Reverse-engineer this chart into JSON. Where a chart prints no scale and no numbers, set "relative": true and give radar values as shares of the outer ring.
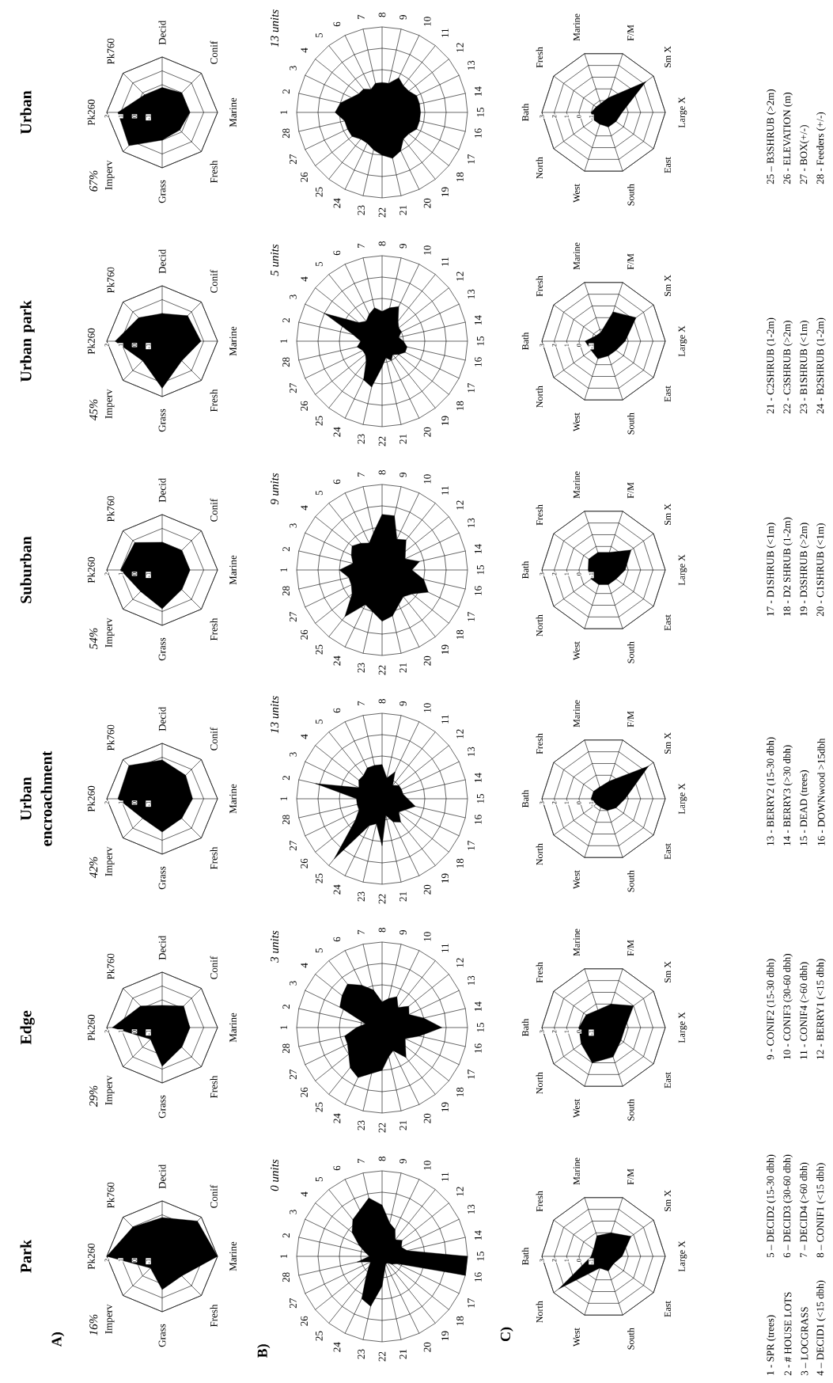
{
  "chart_data": [
    {
      "type": "radar",
      "title": "Park",
      "categories": [
        "Pk260",
        "Pk760",
        "Decid",
        "Conif",
        "Marine",
        "Fresh",
        "Grass",
        "Imperv"
      ],
      "values": [
        2.0,
        1.0,
        0.8,
        1.6,
        2.0,
        0.0,
        0.4,
        -0.8
      ],
      "color": "#000000",
      "ylim": [
        -2,
        2
      ],
      "yticks": [
        -1,
        0,
        1,
        2
      ],
      "grid": true,
      "annotations": [
        "A)",
        "16%"
      ]
    },
    {
      "type": "radar",
      "title": "Edge",
      "categories": [
        "Pk260",
        "Pk760",
        "Decid",
        "Conif",
        "Marine",
        "Fresh",
        "Grass",
        "Imperv"
      ],
      "values": [
        1.6,
        0.2,
        -0.4,
        0.2,
        0.0,
        0.0,
        0.8,
        -0.8
      ],
      "color": "#000000",
      "ylim": [
        -2,
        2
      ],
      "yticks": [
        -1,
        0,
        1,
        2
      ],
      "grid": true,
      "annotations": [
        "29%"
      ]
    },
    {
      "type": "radar",
      "title": "Urban encroachment",
      "categories": [
        "Pk260",
        "Pk760",
        "Decid",
        "Conif",
        "Marine",
        "Fresh",
        "Grass",
        "Imperv"
      ],
      "values": [
        1.2,
        1.4,
        0.8,
        0.4,
        0.2,
        0.0,
        0.4,
        0.0
      ],
      "color": "#000000",
      "ylim": [
        -2,
        2
      ],
      "yticks": [
        -1,
        0,
        1,
        2
      ],
      "grid": true,
      "annotations": [
        "42%"
      ]
    },
    {
      "type": "radar",
      "title": "Suburban",
      "categories": [
        "Pk260",
        "Pk760",
        "Decid",
        "Conif",
        "Marine",
        "Fresh",
        "Grass",
        "Imperv"
      ],
      "values": [
        1.0,
        0.8,
        0.0,
        0.0,
        0.0,
        0.0,
        0.8,
        0.2
      ],
      "color": "#000000",
      "ylim": [
        -2,
        2
      ],
      "yticks": [
        -1,
        0,
        1,
        2
      ],
      "grid": true,
      "annotations": [
        "54%"
      ]
    },
    {
      "type": "radar",
      "title": "Urban park",
      "categories": [
        "Pk260",
        "Pk760",
        "Decid",
        "Conif",
        "Marine",
        "Fresh",
        "Grass",
        "Imperv"
      ],
      "values": [
        1.4,
        0.4,
        0.0,
        0.6,
        0.8,
        0.0,
        1.4,
        0.0
      ],
      "color": "#000000",
      "ylim": [
        -2,
        2
      ],
      "yticks": [
        -1,
        0,
        1,
        2
      ],
      "grid": true,
      "annotations": [
        "45%"
      ]
    },
    {
      "type": "radar",
      "title": "Urban",
      "categories": [
        "Pk260",
        "Pk760",
        "Decid",
        "Conif",
        "Marine",
        "Fresh",
        "Grass",
        "Imperv"
      ],
      "values": [
        1.2,
        -0.2,
        -0.2,
        0.0,
        0.0,
        -0.2,
        0.0,
        1.4
      ],
      "color": "#000000",
      "ylim": [
        -2,
        2
      ],
      "yticks": [
        -1,
        0,
        1,
        2
      ],
      "grid": true,
      "annotations": [
        "67%"
      ]
    },
    {
      "type": "radar",
      "relative": true,
      "categories": [
        "1",
        "2",
        "3",
        "4",
        "5",
        "6",
        "7",
        "8",
        "9",
        "10",
        "11",
        "12",
        "13",
        "14",
        "15",
        "16",
        "17",
        "18",
        "19",
        "20",
        "21",
        "22",
        "23",
        "24",
        "25",
        "26",
        "27",
        "28"
      ],
      "values": [
        0.15,
        0.2,
        0.3,
        0.45,
        0.55,
        0.6,
        0.7,
        0.6,
        0.4,
        0.35,
        0.25,
        0.3,
        0.25,
        0.3,
        1.0,
        1.0,
        0.2,
        0.15,
        0.1,
        0.1,
        0.15,
        0.35,
        0.6,
        0.55,
        0.3,
        0.2,
        0.15,
        0.3
      ],
      "color": "#000000",
      "grid": true,
      "annotations": [
        "B)",
        "0 units"
      ]
    },
    {
      "type": "radar",
      "relative": true,
      "categories": [
        "1",
        "2",
        "3",
        "4",
        "5",
        "6",
        "7",
        "8",
        "9",
        "10",
        "11",
        "12",
        "13",
        "14",
        "15",
        "16",
        "17",
        "18",
        "19",
        "20",
        "21",
        "22",
        "23",
        "24",
        "25",
        "26",
        "27",
        "28"
      ],
      "values": [
        0.3,
        0.2,
        0.55,
        0.6,
        0.65,
        0.55,
        0.45,
        0.3,
        0.35,
        0.4,
        0.3,
        0.4,
        0.35,
        0.5,
        0.7,
        0.45,
        0.3,
        0.35,
        0.45,
        0.3,
        0.35,
        0.5,
        0.55,
        0.65,
        0.6,
        0.5,
        0.45,
        0.45
      ],
      "color": "#000000",
      "grid": true,
      "annotations": [
        "3 units"
      ]
    },
    {
      "type": "radar",
      "relative": true,
      "categories": [
        "1",
        "2",
        "3",
        "4",
        "5",
        "6",
        "7",
        "8",
        "9",
        "10",
        "11",
        "12",
        "13",
        "14",
        "15",
        "16",
        "17",
        "18",
        "19",
        "20",
        "21",
        "22",
        "23",
        "24",
        "25",
        "26",
        "27",
        "28"
      ],
      "values": [
        0.3,
        0.8,
        0.3,
        0.35,
        0.35,
        0.4,
        0.4,
        0.4,
        0.25,
        0.35,
        0.2,
        0.25,
        0.25,
        0.25,
        0.3,
        0.4,
        0.3,
        0.25,
        0.35,
        0.3,
        0.2,
        0.55,
        0.3,
        0.35,
        0.9,
        0.4,
        0.3,
        0.3
      ],
      "color": "#000000",
      "grid": true,
      "annotations": [
        "13 units"
      ]
    },
    {
      "type": "radar",
      "relative": true,
      "categories": [
        "1",
        "2",
        "3",
        "4",
        "5",
        "6",
        "7",
        "8",
        "9",
        "10",
        "11",
        "12",
        "13",
        "14",
        "15",
        "16",
        "17",
        "18",
        "19",
        "20",
        "21",
        "22",
        "23",
        "24",
        "25",
        "26",
        "27",
        "28"
      ],
      "values": [
        0.5,
        0.35,
        0.4,
        0.45,
        0.4,
        0.35,
        0.45,
        0.65,
        0.65,
        0.4,
        0.45,
        0.35,
        0.3,
        0.45,
        0.35,
        0.5,
        0.6,
        0.45,
        0.4,
        0.45,
        0.55,
        0.6,
        0.5,
        0.45,
        0.7,
        0.45,
        0.4,
        0.4
      ],
      "color": "#000000",
      "grid": true,
      "annotations": [
        "9 units"
      ]
    },
    {
      "type": "radar",
      "relative": true,
      "categories": [
        "1",
        "2",
        "3",
        "4",
        "5",
        "6",
        "7",
        "8",
        "9",
        "10",
        "11",
        "12",
        "13",
        "14",
        "15",
        "16",
        "17",
        "18",
        "19",
        "20",
        "21",
        "22",
        "23",
        "24",
        "25",
        "26",
        "27",
        "28"
      ],
      "values": [
        0.25,
        0.35,
        0.75,
        0.35,
        0.3,
        0.35,
        0.4,
        0.35,
        0.4,
        0.45,
        0.3,
        0.25,
        0.25,
        0.2,
        0.25,
        0.3,
        0.3,
        0.25,
        0.2,
        0.25,
        0.2,
        0.3,
        0.55,
        0.5,
        0.3,
        0.25,
        0.25,
        0.3
      ],
      "color": "#000000",
      "grid": true,
      "annotations": [
        "5 units"
      ]
    },
    {
      "type": "radar",
      "relative": true,
      "categories": [
        "1",
        "2",
        "3",
        "4",
        "5",
        "6",
        "7",
        "8",
        "9",
        "10",
        "11",
        "12",
        "13",
        "14",
        "15",
        "16",
        "17",
        "18",
        "19",
        "20",
        "21",
        "22",
        "23",
        "24",
        "25",
        "26",
        "27",
        "28"
      ],
      "values": [
        0.55,
        0.5,
        0.4,
        0.35,
        0.35,
        0.3,
        0.35,
        0.35,
        0.35,
        0.45,
        0.4,
        0.4,
        0.45,
        0.45,
        0.45,
        0.45,
        0.45,
        0.4,
        0.4,
        0.5,
        0.55,
        0.5,
        0.45,
        0.4,
        0.4,
        0.45,
        0.45,
        0.45
      ],
      "color": "#000000",
      "grid": true,
      "annotations": [
        "13 units"
      ]
    },
    {
      "type": "radar",
      "categories": [
        "Bath",
        "Fresh",
        "Marine",
        "F/M",
        "Sm X",
        "Large X",
        "East",
        "South",
        "West",
        "North"
      ],
      "values": [
        -1,
        -1,
        -0.25,
        0,
        0.75,
        -0.5,
        -1,
        -0.75,
        -1,
        2.5
      ],
      "color": "#000000",
      "ylim": [
        -2,
        3
      ],
      "yticks": [
        -1,
        0,
        1,
        2,
        3
      ],
      "grid": true,
      "annotations": [
        "C)"
      ]
    },
    {
      "type": "radar",
      "categories": [
        "Bath",
        "Fresh",
        "Marine",
        "F/M",
        "Sm X",
        "Large X",
        "East",
        "South",
        "West",
        "North"
      ],
      "values": [
        0,
        -0.25,
        -0.5,
        0,
        1,
        -0.25,
        -0.25,
        0.5,
        1,
        0.25
      ],
      "color": "#000000",
      "ylim": [
        -2,
        3
      ],
      "yticks": [
        -1,
        0,
        1,
        2,
        3
      ],
      "grid": true
    },
    {
      "type": "radar",
      "categories": [
        "Bath",
        "Fresh",
        "Marine",
        "F/M",
        "Sm X",
        "Large X",
        "East",
        "South",
        "West",
        "North"
      ],
      "values": [
        -1,
        -1,
        -1,
        -0.5,
        2.5,
        -0.25,
        -0.75,
        -1,
        -1.25,
        -1.25
      ],
      "color": "#000000",
      "ylim": [
        -2,
        3
      ],
      "yticks": [
        -1,
        0,
        1,
        2,
        3
      ],
      "grid": true
    },
    {
      "type": "radar",
      "categories": [
        "Bath",
        "Fresh",
        "Marine",
        "F/M",
        "Sm X",
        "Large X",
        "East",
        "South",
        "West",
        "North"
      ],
      "values": [
        -0.75,
        -0.5,
        -0.5,
        -0.5,
        0.75,
        -0.25,
        -0.75,
        -0.75,
        -0.75,
        -0.75
      ],
      "color": "#000000",
      "ylim": [
        -2,
        3
      ],
      "yticks": [
        -1,
        0,
        1,
        2,
        3
      ],
      "grid": true
    },
    {
      "type": "radar",
      "categories": [
        "Bath",
        "Fresh",
        "Marine",
        "F/M",
        "Sm X",
        "Large X",
        "East",
        "South",
        "West",
        "North"
      ],
      "values": [
        -0.5,
        -1.25,
        -1.25,
        0.5,
        1.25,
        -0.25,
        -0.75,
        -0.75,
        -0.5,
        -0.75
      ],
      "color": "#000000",
      "ylim": [
        -2,
        3
      ],
      "yticks": [
        -1,
        0,
        1,
        2,
        3
      ],
      "grid": true
    },
    {
      "type": "radar",
      "categories": [
        "Bath",
        "Fresh",
        "Marine",
        "F/M",
        "Sm X",
        "Large X",
        "East",
        "South",
        "West",
        "North"
      ],
      "values": [
        -1,
        -1.25,
        -1.25,
        -0.75,
        2.25,
        -0.5,
        -0.75,
        -0.75,
        -1,
        -1
      ],
      "color": "#000000",
      "ylim": [
        -2,
        3
      ],
      "yticks": [
        -1,
        0,
        1,
        2,
        3
      ],
      "grid": true
    },
    {
      "type": "other",
      "annotations": [
        "1 - SPR (trees)",
        "2 - # HOUSE LOTS",
        "3 – LOCGRASS",
        "4 – DECID1 (<15 dbh)",
        "5 – DECID2 (15-30 dbh)",
        "6 – DECID3 (30-60 dbh)",
        "7 – DECID4 (>60 dbh)",
        "8 – CONIF1 (<15 dbh)",
        "9 - CONIF2 (15-30 dbh)",
        "10 - CONIF3 (30-60 dbh)",
        "11 - CONIF4 (>60 dbh)",
        "12 - BERRY1 (<15 dbh)",
        "13 - BERRY2 (15-30 dbh)",
        "14 - BERRY3 (>30 dbh)",
        "15 - DEAD (trees)",
        "16 - DOWNwood >15dbh",
        "17 - D1SHRUB (<1m)",
        "18 - D2 SHRUB (1-2m)",
        "19 - D3SHRUB (>2m)",
        "20 - C1SHRUB (<1m)",
        "21 - C2SHRUB (1-2m)",
        "22 - C3SHRUB (>2m)",
        "23 - B1SHRUB (<1m)",
        "24 - B2SHRUB (1-2m)",
        "25 – B3SHRUB (>2m)",
        "26 - ELEVATION (m)",
        "27 - BOX(+/-)",
        "28 - Feeders (+/-)"
      ]
    }
  ]
}
